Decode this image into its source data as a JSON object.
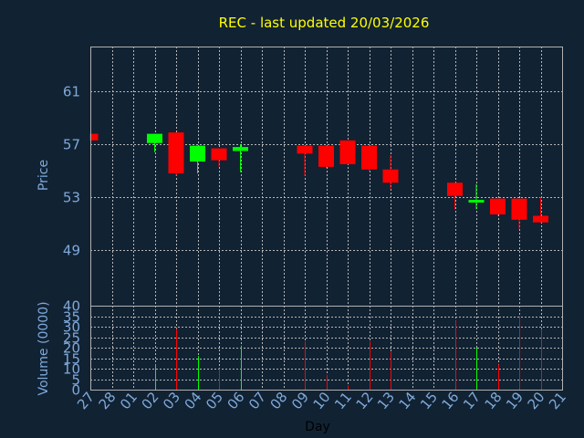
{
  "chart_data": [
    {
      "type": "candlestick",
      "title": "REC - last updated 20/03/2026",
      "ylabel": "Price",
      "ylim": [
        44.8,
        64.4
      ],
      "yticks": [
        "49",
        "53",
        "57",
        "61"
      ],
      "grid": true,
      "colors": {
        "up": "#00ff00",
        "down": "#ff0000",
        "background": "#112233",
        "title": "#ffff00",
        "axis_text": "#7fa9d9"
      },
      "x": [
        "27",
        "28",
        "01",
        "02",
        "03",
        "04",
        "05",
        "06",
        "07",
        "08",
        "09",
        "10",
        "11",
        "12",
        "13",
        "14",
        "15",
        "16",
        "17",
        "18",
        "19",
        "20",
        "21"
      ],
      "candles": [
        {
          "day": "27",
          "open": 57.8,
          "high": 57.8,
          "low": 57.3,
          "close": 57.3
        },
        {
          "day": "02",
          "open": 57.1,
          "high": 57.8,
          "low": 56.4,
          "close": 57.8
        },
        {
          "day": "03",
          "open": 57.9,
          "high": 57.9,
          "low": 54.6,
          "close": 54.8
        },
        {
          "day": "04",
          "open": 55.7,
          "high": 56.9,
          "low": 54.8,
          "close": 56.9
        },
        {
          "day": "05",
          "open": 56.7,
          "high": 56.7,
          "low": 55.3,
          "close": 55.8
        },
        {
          "day": "06",
          "open": 56.5,
          "high": 57.0,
          "low": 54.9,
          "close": 56.8
        },
        {
          "day": "09",
          "open": 56.9,
          "high": 56.9,
          "low": 54.6,
          "close": 56.3
        },
        {
          "day": "10",
          "open": 56.9,
          "high": 56.9,
          "low": 55.2,
          "close": 55.3
        },
        {
          "day": "11",
          "open": 57.3,
          "high": 57.3,
          "low": 55.5,
          "close": 55.5
        },
        {
          "day": "12",
          "open": 56.9,
          "high": 56.9,
          "low": 55.0,
          "close": 55.1
        },
        {
          "day": "13",
          "open": 55.1,
          "high": 56.2,
          "low": 53.6,
          "close": 54.1
        },
        {
          "day": "16",
          "open": 54.1,
          "high": 54.1,
          "low": 52.1,
          "close": 53.1
        },
        {
          "day": "17",
          "open": 52.6,
          "high": 54.0,
          "low": 52.1,
          "close": 52.8
        },
        {
          "day": "18",
          "open": 52.9,
          "high": 52.9,
          "low": 51.6,
          "close": 51.7
        },
        {
          "day": "19",
          "open": 52.9,
          "high": 52.9,
          "low": 50.6,
          "close": 51.3
        },
        {
          "day": "20",
          "open": 51.6,
          "high": 53.0,
          "low": 51.1,
          "close": 51.1
        }
      ]
    },
    {
      "type": "bar",
      "ylabel": "Volume (0000)",
      "xlabel": "Day",
      "ylim": [
        0,
        40
      ],
      "yticks": [
        "0",
        "5",
        "10",
        "15",
        "20",
        "25",
        "30",
        "35",
        "40"
      ],
      "grid": true,
      "x": [
        "27",
        "28",
        "01",
        "02",
        "03",
        "04",
        "05",
        "06",
        "07",
        "08",
        "09",
        "10",
        "11",
        "12",
        "13",
        "14",
        "15",
        "16",
        "17",
        "18",
        "19",
        "20",
        "21"
      ],
      "bars": [
        {
          "day": "02",
          "value": 12,
          "direction": "up"
        },
        {
          "day": "03",
          "value": 29,
          "direction": "down"
        },
        {
          "day": "04",
          "value": 16,
          "direction": "up"
        },
        {
          "day": "05",
          "value": 10,
          "direction": "down"
        },
        {
          "day": "06",
          "value": 21,
          "direction": "up"
        },
        {
          "day": "09",
          "value": 23,
          "direction": "down"
        },
        {
          "day": "10",
          "value": 7,
          "direction": "down"
        },
        {
          "day": "11",
          "value": 2,
          "direction": "down"
        },
        {
          "day": "12",
          "value": 23,
          "direction": "down"
        },
        {
          "day": "13",
          "value": 18,
          "direction": "down"
        },
        {
          "day": "16",
          "value": 33,
          "direction": "down"
        },
        {
          "day": "17",
          "value": 20,
          "direction": "up"
        },
        {
          "day": "18",
          "value": 12,
          "direction": "down"
        },
        {
          "day": "19",
          "value": 35,
          "direction": "down"
        },
        {
          "day": "20",
          "value": 29,
          "direction": "down"
        }
      ]
    }
  ]
}
